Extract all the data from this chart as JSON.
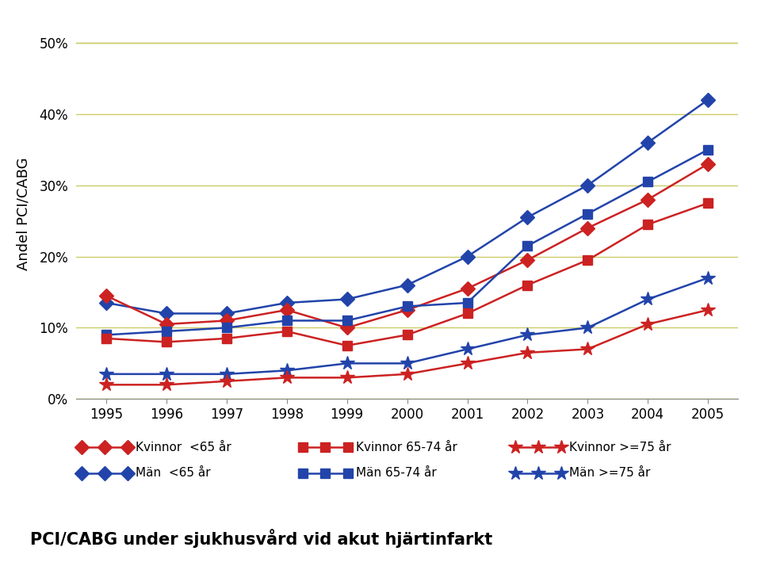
{
  "years": [
    1995,
    1996,
    1997,
    1998,
    1999,
    2000,
    2001,
    2002,
    2003,
    2004,
    2005
  ],
  "series": {
    "kvinnor_lt65": [
      14.5,
      10.5,
      11.0,
      12.5,
      10.0,
      12.5,
      15.5,
      19.5,
      24.0,
      28.0,
      33.0
    ],
    "man_lt65": [
      13.5,
      12.0,
      12.0,
      13.5,
      14.0,
      16.0,
      20.0,
      25.5,
      30.0,
      36.0,
      42.0
    ],
    "kvinnor_6574": [
      8.5,
      8.0,
      8.5,
      9.5,
      7.5,
      9.0,
      12.0,
      16.0,
      19.5,
      24.5,
      27.5
    ],
    "man_6574": [
      9.0,
      9.5,
      10.0,
      11.0,
      11.0,
      13.0,
      13.5,
      21.5,
      26.0,
      30.5,
      35.0
    ],
    "kvinnor_ge75": [
      2.0,
      2.0,
      2.5,
      3.0,
      3.0,
      3.5,
      5.0,
      6.5,
      7.0,
      10.5,
      12.5
    ],
    "man_ge75": [
      3.5,
      3.5,
      3.5,
      4.0,
      5.0,
      5.0,
      7.0,
      9.0,
      10.0,
      14.0,
      17.0
    ]
  },
  "colors": {
    "red": "#CC2222",
    "blue": "#2244AA"
  },
  "ylabel": "Andel PCI/CABG",
  "ylim": [
    0,
    52
  ],
  "yticks": [
    0,
    10,
    20,
    30,
    40,
    50
  ],
  "ytick_labels": [
    "0%",
    "10%",
    "20%",
    "30%",
    "40%",
    "50%"
  ],
  "background_color": "#FFFFFF",
  "plot_bg_color": "#FFFFFF",
  "grid_color": "#CCCC66",
  "subtitle": "PCI/CABG under sjukhusvård vid akut hjärtinfarkt",
  "subtitle_bg": "#B8E8EC",
  "legend_labels": [
    "Kvinnor  <65 år",
    "Män  <65 år",
    "Kvinnor 65-74 år",
    "Män 65-74 år",
    "Kvinnor >=75 år",
    "Män >=75 år"
  ]
}
